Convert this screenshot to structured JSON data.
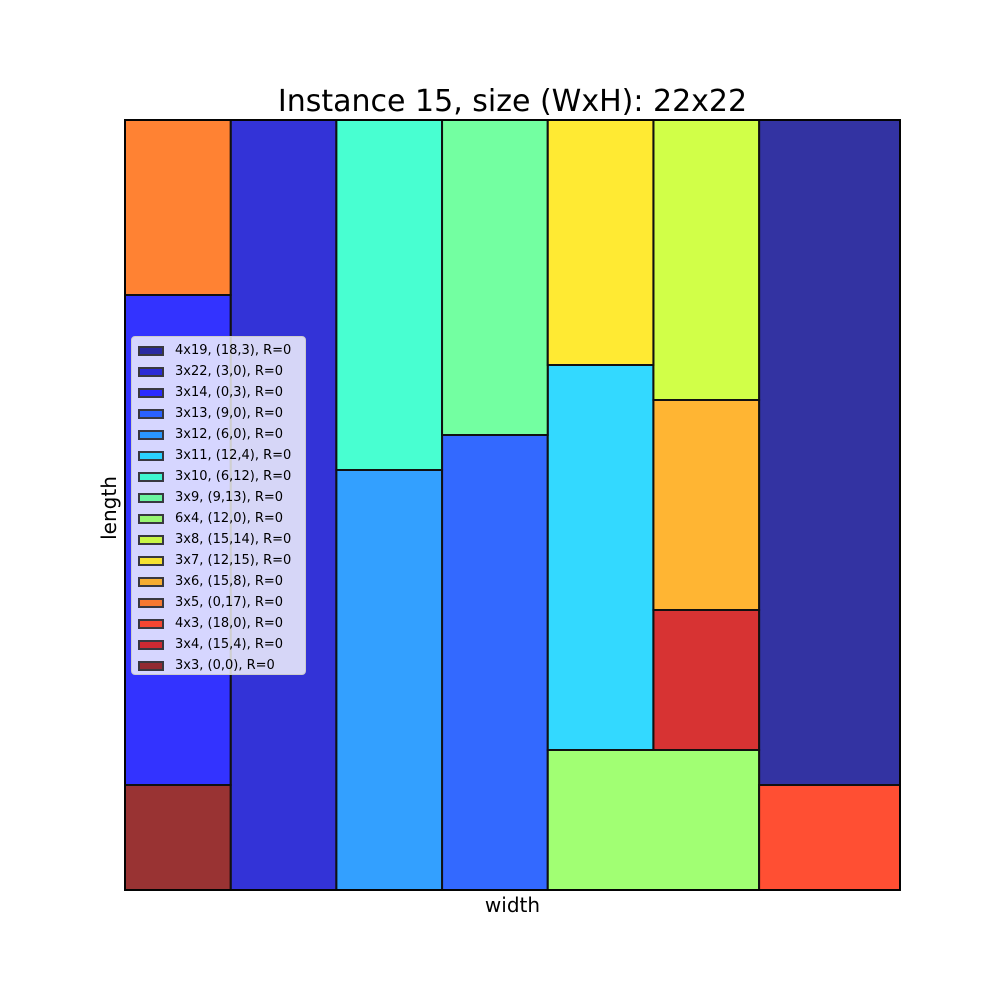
{
  "chart_data": {
    "type": "rectangle-packing",
    "title": "Instance 15, size (WxH): 22x22",
    "xlabel": "width",
    "ylabel": "length",
    "xlim": [
      0,
      22
    ],
    "ylim": [
      0,
      22
    ],
    "grid": false,
    "legend_position": "center-left",
    "items": [
      {
        "label": "4x19, (18,3), R=0",
        "w": 4,
        "h": 19,
        "x": 18,
        "y": 3,
        "color": "#00008b"
      },
      {
        "label": "3x22, (3,0), R=0",
        "w": 3,
        "h": 22,
        "x": 3,
        "y": 0,
        "color": "#0000cd"
      },
      {
        "label": "3x14, (0,3), R=0",
        "w": 3,
        "h": 14,
        "x": 0,
        "y": 3,
        "color": "#0000ff"
      },
      {
        "label": "3x13, (9,0), R=0",
        "w": 3,
        "h": 13,
        "x": 9,
        "y": 0,
        "color": "#0044ff"
      },
      {
        "label": "3x12, (6,0), R=0",
        "w": 3,
        "h": 12,
        "x": 6,
        "y": 0,
        "color": "#0088ff"
      },
      {
        "label": "3x11, (12,4), R=0",
        "w": 3,
        "h": 11,
        "x": 12,
        "y": 4,
        "color": "#00d0ff"
      },
      {
        "label": "3x10, (6,12), R=0",
        "w": 3,
        "h": 10,
        "x": 6,
        "y": 12,
        "color": "#1affc6"
      },
      {
        "label": "3x9, (9,13), R=0",
        "w": 3,
        "h": 9,
        "x": 9,
        "y": 13,
        "color": "#50ff89"
      },
      {
        "label": "6x4, (12,0), R=0",
        "w": 6,
        "h": 4,
        "x": 12,
        "y": 0,
        "color": "#89ff50"
      },
      {
        "label": "3x8, (15,14), R=0",
        "w": 3,
        "h": 8,
        "x": 15,
        "y": 14,
        "color": "#c6ff1a"
      },
      {
        "label": "3x7, (12,15), R=0",
        "w": 3,
        "h": 7,
        "x": 12,
        "y": 15,
        "color": "#ffe500"
      },
      {
        "label": "3x6, (15,8), R=0",
        "w": 3,
        "h": 6,
        "x": 15,
        "y": 8,
        "color": "#ffa300"
      },
      {
        "label": "3x5, (0,17), R=0",
        "w": 3,
        "h": 5,
        "x": 0,
        "y": 17,
        "color": "#ff6300"
      },
      {
        "label": "4x3, (18,0), R=0",
        "w": 4,
        "h": 3,
        "x": 18,
        "y": 0,
        "color": "#ff2300"
      },
      {
        "label": "3x4, (15,4), R=0",
        "w": 3,
        "h": 4,
        "x": 15,
        "y": 4,
        "color": "#cd0000"
      },
      {
        "label": "3x3, (0,0), R=0",
        "w": 3,
        "h": 3,
        "x": 0,
        "y": 0,
        "color": "#800000"
      }
    ]
  }
}
